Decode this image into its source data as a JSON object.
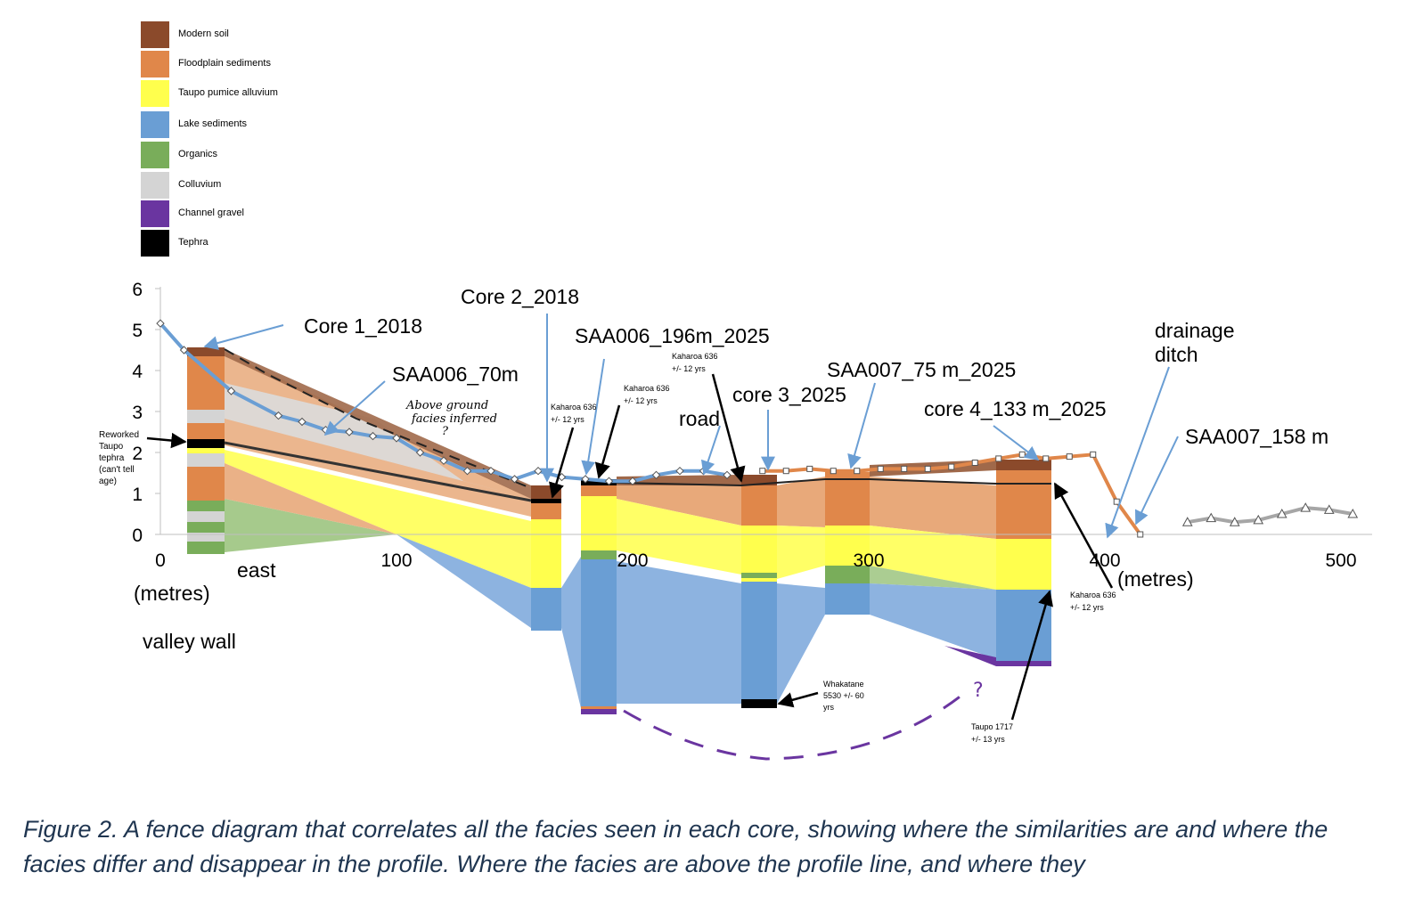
{
  "legend": [
    {
      "label": "Modern soil",
      "color": "#8b4a2b"
    },
    {
      "label": "Floodplain sediments",
      "color": "#e0874a"
    },
    {
      "label": "Taupo pumice alluvium",
      "color": "#ffff4d"
    },
    {
      "label": "Lake sediments",
      "color": "#6a9ed4"
    },
    {
      "label": "Organics",
      "color": "#79ad5a"
    },
    {
      "label": "Colluvium",
      "color": "#d4d4d4"
    },
    {
      "label": "Channel gravel",
      "color": "#6a35a0"
    },
    {
      "label": "Tephra",
      "color": "#000000"
    }
  ],
  "axes": {
    "y_ticks": [
      "6",
      "5",
      "4",
      "3",
      "2",
      "1",
      "0"
    ],
    "x_ticks": [
      "0",
      "100",
      "200",
      "300",
      "400",
      "500"
    ],
    "x_unit_left": "(metres)",
    "x_unit_right": "(metres)",
    "east": "east",
    "valley_wall": "valley wall"
  },
  "labels": {
    "core1": "Core 1_2018",
    "core2": "Core 2_2018",
    "saa006_70": "SAA006_70m",
    "saa006_196": "SAA006_196m_2025",
    "saa007_75": "SAA007_75 m_2025",
    "core3": "core 3_2025",
    "core4": "core 4_133 m_2025",
    "road": "road",
    "drainage": "drainage",
    "ditch": "ditch",
    "saa007_158": "SAA007_158 m",
    "reworked": [
      "Reworked",
      "Taupo",
      "tephra",
      "(can't tell",
      "age)"
    ],
    "above_ground": [
      "Above ground",
      "facies inferred",
      "?"
    ],
    "kaharoa_a": [
      "Kaharoa 636",
      "+/- 12 yrs"
    ],
    "kaharoa_b": [
      "Kaharoa 636",
      "+/- 12 yrs"
    ],
    "kaharoa_c": [
      "Kaharoa 636",
      "+/- 12 yrs"
    ],
    "kaharoa_d": [
      "Kaharoa 636",
      "+/- 12 yrs"
    ],
    "whakatane": [
      "Whakatane",
      "5530 +/- 60",
      "yrs"
    ],
    "taupo": [
      "Taupo 1717",
      "+/- 13 yrs"
    ],
    "question": "?"
  },
  "caption": "Figure 2. A fence diagram that correlates all the facies seen in each core, showing where the similarities are and where the facies differ and disappear in the profile. Where the facies are above the profile line, and where they",
  "chart_data": {
    "type": "line",
    "xlabel": "(metres)",
    "xlim": [
      0,
      500
    ],
    "ylim": [
      0,
      6
    ],
    "series": [
      {
        "color": "#6a9ed4",
        "x": [
          0,
          10,
          30,
          50,
          60,
          70,
          80,
          90,
          100,
          110,
          120,
          130,
          140,
          150,
          160,
          170,
          180,
          190,
          200,
          210,
          220,
          230,
          240
        ],
        "y": [
          5.15,
          4.5,
          3.5,
          2.9,
          2.75,
          2.55,
          2.5,
          2.4,
          2.35,
          2.0,
          1.8,
          1.55,
          1.55,
          1.35,
          1.55,
          1.4,
          1.35,
          1.3,
          1.3,
          1.45,
          1.55,
          1.55,
          1.45
        ]
      },
      {
        "color": "#e0874a",
        "x": [
          255,
          265,
          275,
          285,
          295,
          305,
          315,
          325,
          335,
          345,
          355,
          365,
          375,
          385,
          395,
          405,
          415
        ],
        "y": [
          1.55,
          1.55,
          1.6,
          1.55,
          1.55,
          1.6,
          1.6,
          1.6,
          1.65,
          1.75,
          1.85,
          1.95,
          1.85,
          1.9,
          1.95,
          0.8,
          0
        ]
      },
      {
        "color": "#a6a6a6",
        "x": [
          435,
          445,
          455,
          465,
          475,
          485,
          495,
          505
        ],
        "y": [
          0.3,
          0.4,
          0.3,
          0.35,
          0.5,
          0.65,
          0.6,
          0.5
        ]
      }
    ]
  }
}
